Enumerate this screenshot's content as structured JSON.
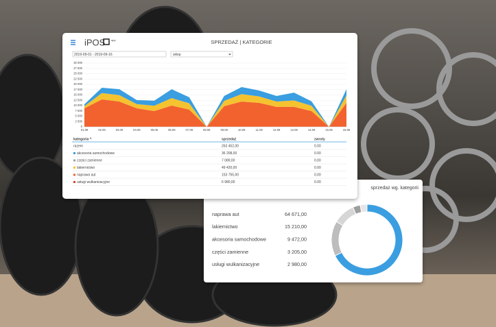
{
  "header": {
    "logo": "iPOS",
    "logo_suffix": "app",
    "title": "SPRZEDAŻ | KATEGORIE",
    "date_range": "2019-09-01 - 2019-09-16",
    "shop_select": "sklep"
  },
  "chart_data": [
    {
      "type": "area",
      "stacked": true,
      "categories": [
        "01.09",
        "02.09",
        "03.09",
        "04.09",
        "05.09",
        "06.09",
        "07.09",
        "08.09",
        "09.09",
        "10.09",
        "11.09",
        "12.09",
        "13.09",
        "14.09",
        "15.09",
        "16.09"
      ],
      "series": [
        {
          "name": "naprawa aut",
          "color": "#f2622e",
          "values": [
            8700,
            12900,
            11900,
            8700,
            7400,
            10000,
            8100,
            0,
            9700,
            11900,
            11300,
            9400,
            9400,
            7400,
            0,
            11300
          ]
        },
        {
          "name": "lakiernictwo",
          "color": "#f5c230",
          "values": [
            1000,
            3000,
            3000,
            2000,
            2500,
            3500,
            3000,
            0,
            2500,
            3500,
            3000,
            2500,
            3000,
            2500,
            0,
            3500
          ]
        },
        {
          "name": "akcesoria samochodowe",
          "color": "#3a9ee0",
          "values": [
            900,
            2500,
            2800,
            1900,
            2400,
            4200,
            2800,
            0,
            2300,
            3300,
            2800,
            2600,
            3700,
            2100,
            0,
            2900
          ]
        }
      ],
      "ylim": [
        0,
        30000
      ],
      "yticks": [
        0,
        {
          "value": 2500,
          "label": "2 500"
        },
        {
          "value": 5000,
          "label": "5 000"
        },
        {
          "value": 7500,
          "label": "7 500"
        },
        {
          "value": 10000,
          "label": "10 000"
        },
        {
          "value": 12500,
          "label": "12 500"
        },
        {
          "value": 15000,
          "label": "15 000"
        },
        {
          "value": 17500,
          "label": "17 500"
        },
        {
          "value": 20000,
          "label": "20 000"
        },
        {
          "value": 22500,
          "label": "22 500"
        },
        {
          "value": 25000,
          "label": "25 000"
        },
        {
          "value": 27500,
          "label": "27 500"
        },
        {
          "value": 30000,
          "label": "30 000"
        }
      ],
      "grid": true
    },
    {
      "type": "pie",
      "donut": true,
      "title": "sprzedaż wg. kategorii",
      "categories": [
        "naprawa aut",
        "lakiernictwo",
        "akcesoria samochodowe",
        "części zamienne",
        "usługi wulkanizacyjne"
      ],
      "values": [
        64671,
        15210,
        9472,
        3205,
        2980
      ],
      "value_labels": [
        "64 671,00",
        "15 210,00",
        "9 472,00",
        "3 205,00",
        "2 980,00"
      ],
      "colors": [
        "#3a9ee0",
        "#bdbdbd",
        "#d6d6d6",
        "#9e9e9e",
        "#e6e6e6"
      ]
    }
  ],
  "table": {
    "columns": [
      "kategoria ^",
      "sprzedaż",
      "zwroty"
    ],
    "rows": [
      [
        "razem",
        "263 452,00",
        "0.00"
      ],
      [
        "akcesoria samochodowe",
        "36 208,00",
        "0.00"
      ],
      [
        "części zamienne",
        "7 089,00",
        "0.00"
      ],
      [
        "lakiernictwo",
        "49 420,00",
        "0.00"
      ],
      [
        "naprawa aut",
        "153 755,00",
        "0.00"
      ],
      [
        "usługi wulkanizacyjne",
        "6 980,00",
        "0.00"
      ]
    ],
    "row_colors": [
      null,
      "#3a9ee0",
      "#9e9e9e",
      "#f5c230",
      "#f2622e",
      "#d9452b"
    ]
  }
}
